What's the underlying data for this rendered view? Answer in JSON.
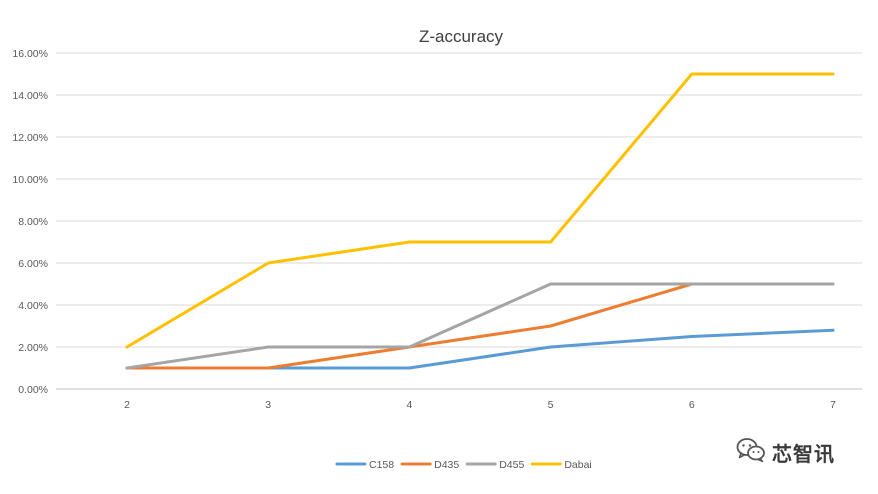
{
  "chart_data": {
    "type": "line",
    "title": "Z-accuracy",
    "xlabel": "",
    "ylabel": "",
    "categories": [
      "2",
      "3",
      "4",
      "5",
      "6",
      "7"
    ],
    "ylim": [
      0,
      0.16
    ],
    "yticks": [
      "0.00%",
      "2.00%",
      "4.00%",
      "6.00%",
      "8.00%",
      "10.00%",
      "12.00%",
      "14.00%",
      "16.00%"
    ],
    "grid": true,
    "legend_position": "bottom",
    "series": [
      {
        "name": "C158",
        "color": "#5B9BD5",
        "values": [
          0.01,
          0.01,
          0.01,
          0.02,
          0.025,
          0.028
        ]
      },
      {
        "name": "D435",
        "color": "#ED7D31",
        "values": [
          0.01,
          0.01,
          0.02,
          0.03,
          0.05,
          0.05
        ]
      },
      {
        "name": "D455",
        "color": "#A5A5A5",
        "values": [
          0.01,
          0.02,
          0.02,
          0.05,
          0.05,
          0.05
        ]
      },
      {
        "name": "Dabai",
        "color": "#FFC000",
        "values": [
          0.02,
          0.06,
          0.07,
          0.07,
          0.15,
          0.15
        ]
      }
    ]
  },
  "watermark": {
    "text": "芯智讯",
    "icon": "wechat-icon"
  }
}
